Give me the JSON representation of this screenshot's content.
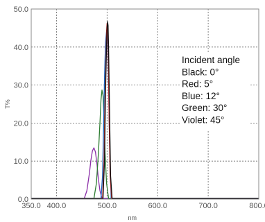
{
  "chart_data": {
    "type": "line",
    "xlabel": "nm",
    "ylabel": "T%",
    "xlim": [
      350,
      800
    ],
    "ylim": [
      0,
      50
    ],
    "xticks": [
      350,
      400,
      500,
      600,
      700,
      800
    ],
    "xtick_labels": [
      "350.0",
      "400.0",
      "500.0",
      "600.0",
      "700.0",
      "800.0"
    ],
    "yticks": [
      0,
      10,
      20,
      30,
      40,
      50
    ],
    "ytick_labels": [
      "0.0",
      "10.0",
      "20.0",
      "30.0",
      "40.0",
      "50.0"
    ],
    "grid": true,
    "annotation": {
      "lines": [
        "Incident angle",
        "Black: 0°",
        "Red: 5°",
        "Blue: 12°",
        "Green: 30°",
        "Violet: 45°"
      ]
    },
    "series": [
      {
        "color": "#8B2FA8",
        "x": [
          350,
          455,
          460,
          465,
          468,
          471,
          474,
          477,
          480,
          483,
          486,
          490,
          500,
          800
        ],
        "y": [
          0,
          0,
          2,
          6.5,
          10,
          12.5,
          13.3,
          12.2,
          9,
          5,
          2,
          0,
          0,
          0
        ]
      },
      {
        "color": "#2E7D32",
        "x": [
          350,
          474,
          479,
          483,
          486,
          488,
          490,
          492,
          494,
          496,
          499,
          503,
          800
        ],
        "y": [
          0,
          0,
          4,
          12,
          20,
          26,
          28.5,
          27,
          21,
          12,
          4,
          0,
          0
        ]
      },
      {
        "color": "#1565C0",
        "x": [
          350,
          488,
          491,
          493,
          495,
          497,
          499,
          500,
          501,
          503,
          505,
          508,
          800
        ],
        "y": [
          0,
          0,
          6,
          18,
          32,
          41,
          44,
          44.5,
          42,
          30,
          14,
          0,
          0
        ]
      },
      {
        "color": "#C62828",
        "x": [
          350,
          491,
          494,
          496,
          498,
          499,
          500,
          501,
          502,
          504,
          506,
          509,
          800
        ],
        "y": [
          0,
          0,
          10,
          26,
          38,
          44,
          46,
          45,
          40,
          22,
          6,
          0,
          0
        ]
      },
      {
        "color": "#111111",
        "x": [
          350,
          492,
          495,
          497,
          499,
          500,
          501,
          502,
          503,
          505,
          507,
          510,
          800
        ],
        "y": [
          0,
          0,
          10,
          28,
          40,
          45,
          46.5,
          45.5,
          40,
          22,
          6,
          0,
          0
        ]
      }
    ]
  }
}
